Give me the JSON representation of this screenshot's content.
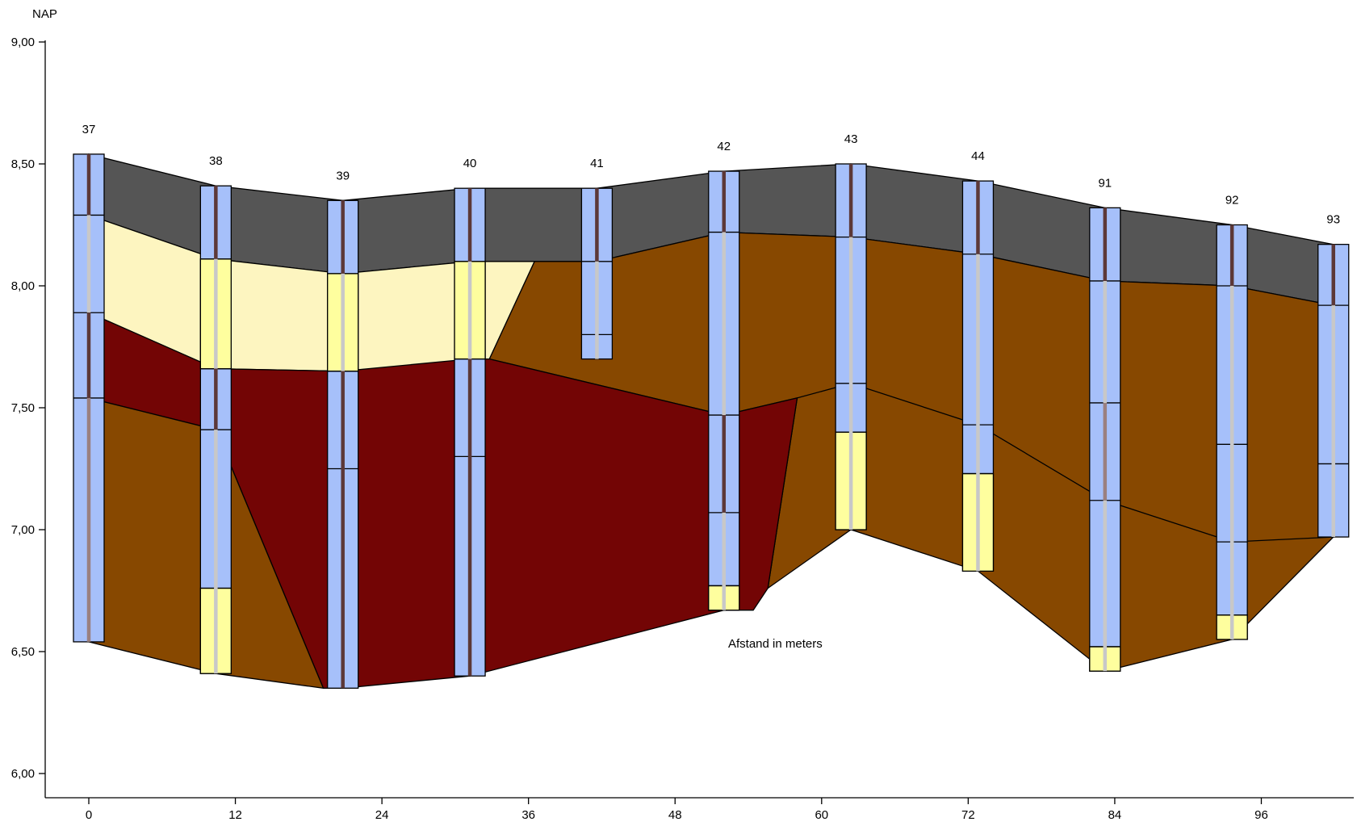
{
  "chart_data": {
    "type": "cross-section",
    "title": "",
    "ylabel": "NAP",
    "xlabel": "Afstand in meters",
    "ylim": [
      6.0,
      9.0
    ],
    "xlim": [
      -5,
      102
    ],
    "y_ticks": [
      {
        "value": 9.0,
        "label": "9,00"
      },
      {
        "value": 8.5,
        "label": "8,50"
      },
      {
        "value": 8.0,
        "label": "8,00"
      },
      {
        "value": 7.5,
        "label": "7,50"
      },
      {
        "value": 7.0,
        "label": "7,00"
      },
      {
        "value": 6.5,
        "label": "6,50"
      },
      {
        "value": 6.0,
        "label": "6,00"
      }
    ],
    "x_ticks": [
      {
        "value": 0,
        "label": "0"
      },
      {
        "value": 12,
        "label": "12"
      },
      {
        "value": 24,
        "label": "24"
      },
      {
        "value": 36,
        "label": "36"
      },
      {
        "value": 48,
        "label": "48"
      },
      {
        "value": 60,
        "label": "60"
      },
      {
        "value": 72,
        "label": "72"
      },
      {
        "value": 84,
        "label": "84"
      },
      {
        "value": 96,
        "label": "96"
      }
    ],
    "materials": {
      "topsoil": "#555555",
      "light_sand": "#fdf5c0",
      "peat": "#730505",
      "clay": "#874800",
      "bore_fill": "#a6c0fa",
      "yellow_fill": "#fefe9e",
      "rod_dark": "#5c3838",
      "rod_light": "#c8c8c8"
    },
    "boreholes": [
      {
        "label": "37",
        "x": 0,
        "top": 8.54,
        "bottom": 6.54,
        "layers": [
          8.29,
          7.89,
          7.54
        ],
        "yellow": [],
        "rod": [
          {
            "from": 8.54,
            "to": 8.29,
            "c": "dark"
          },
          {
            "from": 8.29,
            "to": 7.89,
            "c": "light"
          },
          {
            "from": 7.89,
            "to": 7.54,
            "c": "dark"
          },
          {
            "from": 7.54,
            "to": 6.54,
            "c": "mid"
          }
        ]
      },
      {
        "label": "38",
        "x": 10.4,
        "top": 8.41,
        "bottom": 6.41,
        "layers": [
          8.11,
          7.66,
          7.41,
          6.76
        ],
        "yellow": [
          [
            8.11,
            7.66
          ],
          [
            6.76,
            6.41
          ]
        ],
        "rod": [
          {
            "from": 8.41,
            "to": 8.11,
            "c": "dark"
          },
          {
            "from": 8.11,
            "to": 7.66,
            "c": "light"
          },
          {
            "from": 7.66,
            "to": 7.41,
            "c": "dark"
          },
          {
            "from": 7.41,
            "to": 6.41,
            "c": "light"
          }
        ]
      },
      {
        "label": "39",
        "x": 20.8,
        "top": 8.35,
        "bottom": 6.35,
        "layers": [
          8.05,
          7.65,
          7.25
        ],
        "yellow": [
          [
            8.05,
            7.65
          ]
        ],
        "rod": [
          {
            "from": 8.35,
            "to": 8.05,
            "c": "dark"
          },
          {
            "from": 8.05,
            "to": 7.65,
            "c": "light"
          },
          {
            "from": 7.65,
            "to": 6.35,
            "c": "dark"
          }
        ]
      },
      {
        "label": "40",
        "x": 31.2,
        "top": 8.4,
        "bottom": 6.4,
        "layers": [
          8.1,
          7.7,
          7.3
        ],
        "yellow": [
          [
            8.1,
            7.7
          ]
        ],
        "rod": [
          {
            "from": 8.4,
            "to": 8.1,
            "c": "dark"
          },
          {
            "from": 8.1,
            "to": 7.7,
            "c": "light"
          },
          {
            "from": 7.7,
            "to": 6.4,
            "c": "dark"
          }
        ]
      },
      {
        "label": "41",
        "x": 41.6,
        "top": 8.4,
        "bottom": 7.7,
        "layers": [
          8.1,
          7.8
        ],
        "yellow": [],
        "rod": [
          {
            "from": 8.4,
            "to": 8.1,
            "c": "dark"
          },
          {
            "from": 8.1,
            "to": 7.7,
            "c": "light"
          }
        ]
      },
      {
        "label": "42",
        "x": 52.0,
        "top": 8.47,
        "bottom": 6.67,
        "layers": [
          8.22,
          7.47,
          7.07,
          6.77
        ],
        "yellow": [
          [
            6.77,
            6.67
          ]
        ],
        "rod": [
          {
            "from": 8.47,
            "to": 8.22,
            "c": "dark"
          },
          {
            "from": 8.22,
            "to": 7.47,
            "c": "light"
          },
          {
            "from": 7.47,
            "to": 7.07,
            "c": "dark"
          },
          {
            "from": 7.07,
            "to": 6.67,
            "c": "light"
          }
        ]
      },
      {
        "label": "43",
        "x": 62.4,
        "top": 8.5,
        "bottom": 7.0,
        "layers": [
          8.2,
          7.6,
          7.4
        ],
        "yellow": [
          [
            7.4,
            7.0
          ]
        ],
        "rod": [
          {
            "from": 8.5,
            "to": 8.2,
            "c": "dark"
          },
          {
            "from": 8.2,
            "to": 7.0,
            "c": "light"
          }
        ]
      },
      {
        "label": "44",
        "x": 72.8,
        "top": 8.43,
        "bottom": 6.83,
        "layers": [
          8.13,
          7.43,
          7.23
        ],
        "yellow": [
          [
            7.23,
            6.83
          ]
        ],
        "rod": [
          {
            "from": 8.43,
            "to": 8.13,
            "c": "dark"
          },
          {
            "from": 8.13,
            "to": 6.83,
            "c": "light"
          }
        ]
      },
      {
        "label": "91",
        "x": 83.2,
        "top": 8.32,
        "bottom": 6.42,
        "layers": [
          8.02,
          7.52,
          7.12,
          6.52
        ],
        "yellow": [
          [
            6.52,
            6.42
          ]
        ],
        "rod": [
          {
            "from": 8.32,
            "to": 8.02,
            "c": "dark"
          },
          {
            "from": 8.02,
            "to": 7.52,
            "c": "light"
          },
          {
            "from": 7.52,
            "to": 7.12,
            "c": "mid"
          },
          {
            "from": 7.12,
            "to": 6.42,
            "c": "light"
          }
        ]
      },
      {
        "label": "92",
        "x": 93.6,
        "top": 8.25,
        "bottom": 6.55,
        "layers": [
          8.0,
          7.35,
          6.95,
          6.65
        ],
        "yellow": [
          [
            6.65,
            6.55
          ]
        ],
        "rod": [
          {
            "from": 8.25,
            "to": 8.0,
            "c": "dark"
          },
          {
            "from": 8.0,
            "to": 6.55,
            "c": "light"
          }
        ]
      },
      {
        "label": "93",
        "x": 101.9,
        "top": 8.17,
        "bottom": 6.97,
        "layers": [
          7.92,
          7.27
        ],
        "yellow": [],
        "rod": [
          {
            "from": 8.17,
            "to": 7.92,
            "c": "dark"
          },
          {
            "from": 7.92,
            "to": 6.97,
            "c": "light"
          }
        ]
      }
    ],
    "zones": [
      {
        "material": "topsoil",
        "pts": [
          [
            0,
            8.54
          ],
          [
            10.4,
            8.41
          ],
          [
            20.8,
            8.35
          ],
          [
            31.2,
            8.4
          ],
          [
            41.6,
            8.4
          ],
          [
            52.0,
            8.47
          ],
          [
            62.4,
            8.5
          ],
          [
            72.8,
            8.43
          ],
          [
            83.2,
            8.32
          ],
          [
            93.6,
            8.25
          ],
          [
            101.9,
            8.17
          ],
          [
            101.9,
            7.92
          ],
          [
            93.6,
            8.0
          ],
          [
            83.2,
            8.02
          ],
          [
            72.8,
            8.13
          ],
          [
            62.4,
            8.2
          ],
          [
            52.0,
            8.22
          ],
          [
            41.6,
            8.1
          ],
          [
            36.5,
            8.1
          ],
          [
            31.2,
            8.1
          ],
          [
            20.8,
            8.05
          ],
          [
            10.4,
            8.11
          ],
          [
            0,
            8.29
          ]
        ]
      },
      {
        "material": "light_sand",
        "pts": [
          [
            0,
            8.29
          ],
          [
            10.4,
            8.11
          ],
          [
            20.8,
            8.05
          ],
          [
            31.2,
            8.1
          ],
          [
            36.5,
            8.1
          ],
          [
            32.8,
            7.7
          ],
          [
            20.8,
            7.65
          ],
          [
            10.4,
            7.66
          ],
          [
            0,
            7.89
          ]
        ]
      },
      {
        "material": "clay",
        "pts": [
          [
            36.5,
            8.1
          ],
          [
            41.6,
            8.1
          ],
          [
            52.0,
            8.22
          ],
          [
            62.4,
            8.2
          ],
          [
            72.8,
            8.13
          ],
          [
            83.2,
            8.02
          ],
          [
            93.6,
            8.0
          ],
          [
            101.9,
            7.92
          ],
          [
            101.9,
            6.97
          ],
          [
            93.6,
            6.55
          ],
          [
            83.2,
            6.42
          ],
          [
            72.8,
            6.83
          ],
          [
            62.4,
            7.0
          ],
          [
            55.6,
            6.76
          ],
          [
            58.0,
            7.54
          ],
          [
            52.0,
            7.47
          ],
          [
            32.8,
            7.7
          ]
        ]
      },
      {
        "material": "peat",
        "pts": [
          [
            0,
            7.89
          ],
          [
            10.4,
            7.66
          ],
          [
            20.8,
            7.65
          ],
          [
            31.2,
            7.7
          ],
          [
            32.8,
            7.7
          ],
          [
            52.0,
            7.47
          ],
          [
            58.0,
            7.54
          ],
          [
            55.6,
            6.76
          ],
          [
            54.4,
            6.67
          ],
          [
            52.0,
            6.67
          ],
          [
            31.2,
            6.4
          ],
          [
            20.8,
            6.35
          ],
          [
            19.2,
            6.35
          ],
          [
            10.4,
            7.41
          ],
          [
            0,
            7.54
          ]
        ]
      },
      {
        "material": "clay",
        "pts": [
          [
            0,
            7.54
          ],
          [
            10.4,
            7.41
          ],
          [
            19.2,
            6.35
          ],
          [
            10.4,
            6.41
          ],
          [
            0,
            6.54
          ]
        ]
      }
    ],
    "extra_lines": [
      [
        [
          58.0,
          7.54
        ],
        [
          62.4,
          7.6
        ],
        [
          72.8,
          7.43
        ],
        [
          83.2,
          7.12
        ],
        [
          93.6,
          6.95
        ],
        [
          101.9,
          6.97
        ]
      ]
    ]
  }
}
